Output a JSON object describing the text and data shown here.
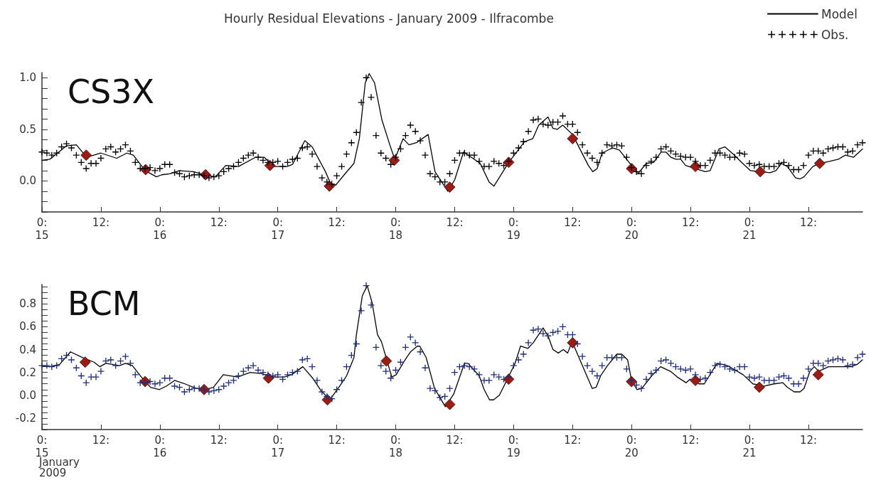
{
  "chart_data": [
    {
      "type": "line",
      "title": "Hourly Residual Elevations - January 2009 - Ilfracombe",
      "annotations": [
        "CS3X"
      ],
      "legend": "top right",
      "grid": false,
      "xlim": [
        "2009-01-15T00:00",
        "2009-01-21T23:00"
      ],
      "xticks": [
        {
          "value": "2009-01-15T00:00",
          "label": "0:\n15"
        },
        {
          "value": "2009-01-15T12:00",
          "label": "12:"
        },
        {
          "value": "2009-01-16T00:00",
          "label": "0:\n16"
        },
        {
          "value": "2009-01-16T12:00",
          "label": "12:"
        },
        {
          "value": "2009-01-17T00:00",
          "label": "0:\n17"
        },
        {
          "value": "2009-01-17T12:00",
          "label": "12:"
        },
        {
          "value": "2009-01-18T00:00",
          "label": "0:\n18"
        },
        {
          "value": "2009-01-18T12:00",
          "label": "12:"
        },
        {
          "value": "2009-01-19T00:00",
          "label": "0:\n19"
        },
        {
          "value": "2009-01-19T12:00",
          "label": "12:"
        },
        {
          "value": "2009-01-20T00:00",
          "label": "0:\n20"
        },
        {
          "value": "2009-01-20T12:00",
          "label": "12:"
        },
        {
          "value": "2009-01-21T00:00",
          "label": "0:\n21"
        },
        {
          "value": "2009-01-21T12:00",
          "label": "12:"
        }
      ],
      "ylim": [
        -0.3,
        1.05
      ],
      "yticks": [
        {
          "value": -0.3,
          "label": null
        },
        {
          "value": -0.2,
          "label": null
        },
        {
          "value": -0.1,
          "label": null
        },
        {
          "value": 0,
          "label": "0.0"
        },
        {
          "value": 0.1,
          "label": null
        },
        {
          "value": 0.2,
          "label": null
        },
        {
          "value": 0.3,
          "label": null
        },
        {
          "value": 0.4,
          "label": null
        },
        {
          "value": 0.5,
          "label": "0.5"
        },
        {
          "value": 0.6,
          "label": null
        },
        {
          "value": 0.7,
          "label": null
        },
        {
          "value": 0.8,
          "label": null
        },
        {
          "value": 0.9,
          "label": null
        },
        {
          "value": 1.0,
          "label": "1.0"
        }
      ],
      "x": [
        "2009-01-15T00:00",
        "2009-01-15T01:00",
        "2009-01-15T02:00",
        "2009-01-15T03:00",
        "2009-01-15T04:00",
        "2009-01-15T05:00",
        "2009-01-15T06:00",
        "2009-01-15T07:00",
        "2009-01-15T08:00",
        "2009-01-15T09:00",
        "2009-01-15T10:00",
        "2009-01-15T11:00",
        "2009-01-15T12:00",
        "2009-01-15T13:00",
        "2009-01-15T14:00",
        "2009-01-15T15:00",
        "2009-01-15T16:00",
        "2009-01-15T17:00",
        "2009-01-15T18:00",
        "2009-01-15T19:00",
        "2009-01-15T20:00",
        "2009-01-15T21:00",
        "2009-01-15T22:00",
        "2009-01-15T23:00",
        "2009-01-16T00:00",
        "2009-01-16T01:00",
        "2009-01-16T02:00",
        "2009-01-16T03:00",
        "2009-01-16T04:00",
        "2009-01-16T05:00",
        "2009-01-16T06:00",
        "2009-01-16T07:00",
        "2009-01-16T08:00",
        "2009-01-16T09:00",
        "2009-01-16T10:00",
        "2009-01-16T11:00",
        "2009-01-16T12:00",
        "2009-01-16T13:00",
        "2009-01-16T14:00",
        "2009-01-16T15:00",
        "2009-01-16T16:00",
        "2009-01-16T17:00",
        "2009-01-16T18:00",
        "2009-01-16T19:00",
        "2009-01-16T20:00",
        "2009-01-16T21:00",
        "2009-01-16T22:00",
        "2009-01-16T23:00",
        "2009-01-17T00:00",
        "2009-01-17T01:00",
        "2009-01-17T02:00",
        "2009-01-17T03:00",
        "2009-01-17T04:00",
        "2009-01-17T05:00",
        "2009-01-17T06:00",
        "2009-01-17T07:00",
        "2009-01-17T08:00",
        "2009-01-17T09:00",
        "2009-01-17T10:00",
        "2009-01-17T11:00",
        "2009-01-17T12:00",
        "2009-01-17T13:00",
        "2009-01-17T14:00",
        "2009-01-17T15:00",
        "2009-01-17T16:00",
        "2009-01-17T17:00",
        "2009-01-17T18:00",
        "2009-01-17T19:00",
        "2009-01-17T20:00",
        "2009-01-17T21:00",
        "2009-01-17T22:00",
        "2009-01-17T23:00",
        "2009-01-18T00:00",
        "2009-01-18T01:00",
        "2009-01-18T02:00",
        "2009-01-18T03:00",
        "2009-01-18T04:00",
        "2009-01-18T05:00",
        "2009-01-18T06:00",
        "2009-01-18T07:00",
        "2009-01-18T08:00",
        "2009-01-18T09:00",
        "2009-01-18T10:00",
        "2009-01-18T11:00",
        "2009-01-18T12:00",
        "2009-01-18T13:00",
        "2009-01-18T14:00",
        "2009-01-18T15:00",
        "2009-01-18T16:00",
        "2009-01-18T17:00",
        "2009-01-18T18:00",
        "2009-01-18T19:00",
        "2009-01-18T20:00",
        "2009-01-18T21:00",
        "2009-01-18T22:00",
        "2009-01-18T23:00",
        "2009-01-19T00:00",
        "2009-01-19T01:00",
        "2009-01-19T02:00",
        "2009-01-19T03:00",
        "2009-01-19T04:00",
        "2009-01-19T05:00",
        "2009-01-19T06:00",
        "2009-01-19T07:00",
        "2009-01-19T08:00",
        "2009-01-19T09:00",
        "2009-01-19T10:00",
        "2009-01-19T11:00",
        "2009-01-19T12:00",
        "2009-01-19T13:00",
        "2009-01-19T14:00",
        "2009-01-19T15:00",
        "2009-01-19T16:00",
        "2009-01-19T17:00",
        "2009-01-19T18:00",
        "2009-01-19T19:00",
        "2009-01-19T20:00",
        "2009-01-19T21:00",
        "2009-01-19T22:00",
        "2009-01-19T23:00",
        "2009-01-20T00:00",
        "2009-01-20T01:00",
        "2009-01-20T02:00",
        "2009-01-20T03:00",
        "2009-01-20T04:00",
        "2009-01-20T05:00",
        "2009-01-20T06:00",
        "2009-01-20T07:00",
        "2009-01-20T08:00",
        "2009-01-20T09:00",
        "2009-01-20T10:00",
        "2009-01-20T11:00",
        "2009-01-20T12:00",
        "2009-01-20T13:00",
        "2009-01-20T14:00",
        "2009-01-20T15:00",
        "2009-01-20T16:00",
        "2009-01-20T17:00",
        "2009-01-20T18:00",
        "2009-01-20T19:00",
        "2009-01-20T20:00",
        "2009-01-20T21:00",
        "2009-01-20T22:00",
        "2009-01-20T23:00",
        "2009-01-21T00:00",
        "2009-01-21T01:00",
        "2009-01-21T02:00",
        "2009-01-21T03:00",
        "2009-01-21T04:00",
        "2009-01-21T05:00",
        "2009-01-21T06:00",
        "2009-01-21T07:00",
        "2009-01-21T08:00",
        "2009-01-21T09:00",
        "2009-01-21T10:00",
        "2009-01-21T11:00",
        "2009-01-21T12:00",
        "2009-01-21T13:00",
        "2009-01-21T14:00",
        "2009-01-21T15:00",
        "2009-01-21T16:00",
        "2009-01-21T17:00",
        "2009-01-21T18:00",
        "2009-01-21T19:00",
        "2009-01-21T20:00",
        "2009-01-21T21:00",
        "2009-01-21T22:00",
        "2009-01-21T23:00"
      ],
      "series": [
        {
          "name": "Model",
          "type": "line",
          "color": "#000000",
          "marker": "none",
          "line_style": "solid",
          "x": [
            "2009-01-15T00:00",
            "2009-01-15T01:36",
            "2009-01-15T05:00",
            "2009-01-15T07:00",
            "2009-01-15T09:06",
            "2009-01-15T12:00",
            "2009-01-15T15:12",
            "2009-01-15T17:18",
            "2009-01-15T18:36",
            "2009-01-15T21:00",
            "2009-01-15T23:18",
            "2009-01-16T00:24",
            "2009-01-16T02:00",
            "2009-01-16T04:00",
            "2009-01-16T06:48",
            "2009-01-16T09:00",
            "2009-01-16T11:18",
            "2009-01-16T13:24",
            "2009-01-16T16:00",
            "2009-01-16T19:30",
            "2009-01-16T21:12",
            "2009-01-16T23:18",
            "2009-01-17T01:54",
            "2009-01-17T03:00",
            "2009-01-17T05:30",
            "2009-01-17T07:00",
            "2009-01-17T09:42",
            "2009-01-17T10:48",
            "2009-01-17T11:48",
            "2009-01-17T13:42",
            "2009-01-17T15:30",
            "2009-01-17T16:36",
            "2009-01-17T17:48",
            "2009-01-17T18:36",
            "2009-01-17T19:42",
            "2009-01-17T21:12",
            "2009-01-17T22:48",
            "2009-01-17T23:48",
            "2009-01-18T01:30",
            "2009-01-18T02:42",
            "2009-01-18T04:12",
            "2009-01-18T06:36",
            "2009-01-18T08:00",
            "2009-01-18T10:36",
            "2009-01-18T12:00",
            "2009-01-18T13:48",
            "2009-01-18T17:12",
            "2009-01-18T19:00",
            "2009-01-18T20:00",
            "2009-01-18T23:00",
            "2009-01-19T02:12",
            "2009-01-19T03:54",
            "2009-01-19T05:06",
            "2009-01-19T07:00",
            "2009-01-19T08:00",
            "2009-01-19T08:54",
            "2009-01-19T10:00",
            "2009-01-19T12:00",
            "2009-01-19T15:12",
            "2009-01-19T16:06",
            "2009-01-19T17:00",
            "2009-01-19T18:00",
            "2009-01-19T20:06",
            "2009-01-19T21:30",
            "2009-01-20T00:00",
            "2009-01-20T01:18",
            "2009-01-20T03:00",
            "2009-01-20T04:30",
            "2009-01-20T06:00",
            "2009-01-20T07:00",
            "2009-01-20T08:00",
            "2009-01-20T09:00",
            "2009-01-20T10:00",
            "2009-01-20T11:00",
            "2009-01-20T13:00",
            "2009-01-20T15:00",
            "2009-01-20T16:00",
            "2009-01-20T17:48",
            "2009-01-20T19:00",
            "2009-01-20T20:42",
            "2009-01-20T22:24",
            "2009-01-21T00:12",
            "2009-01-21T02:12",
            "2009-01-21T04:12",
            "2009-01-21T05:24",
            "2009-01-21T06:30",
            "2009-01-21T07:42",
            "2009-01-21T09:24",
            "2009-01-21T10:18",
            "2009-01-21T11:06",
            "2009-01-21T12:54",
            "2009-01-21T14:18",
            "2009-01-21T16:18",
            "2009-01-21T18:06",
            "2009-01-21T19:30",
            "2009-01-21T21:12",
            "2009-01-21T23:00"
          ],
          "values": [
            0.2,
            0.21,
            0.34,
            0.35,
            0.23,
            0.27,
            0.22,
            0.27,
            0.25,
            0.1,
            0.04,
            0.06,
            0.07,
            0.1,
            0.09,
            0.06,
            0.04,
            0.15,
            0.14,
            0.23,
            0.23,
            0.14,
            0.14,
            0.16,
            0.39,
            0.33,
            0.09,
            -0.03,
            -0.04,
            0.07,
            0.17,
            0.41,
            0.95,
            1.04,
            0.95,
            0.59,
            0.35,
            0.21,
            0.41,
            0.35,
            0.37,
            0.45,
            0.09,
            -0.1,
            0.01,
            0.28,
            0.17,
            -0.01,
            -0.05,
            0.18,
            0.38,
            0.41,
            0.54,
            0.62,
            0.51,
            0.5,
            0.54,
            0.45,
            0.15,
            0.09,
            0.12,
            0.27,
            0.32,
            0.3,
            0.15,
            0.07,
            0.17,
            0.18,
            0.28,
            0.28,
            0.23,
            0.21,
            0.21,
            0.15,
            0.12,
            0.09,
            0.1,
            0.31,
            0.33,
            0.26,
            0.18,
            0.1,
            0.09,
            0.08,
            0.1,
            0.17,
            0.14,
            0.03,
            0.02,
            0.04,
            0.14,
            0.17,
            0.19,
            0.21,
            0.25,
            0.23,
            0.31
          ]
        },
        {
          "name": "Obs.",
          "type": "scatter",
          "color": "#000000",
          "marker": "cross",
          "values": [
            0.28,
            0.27,
            0.25,
            0.27,
            0.33,
            0.36,
            0.32,
            0.25,
            0.18,
            0.12,
            0.17,
            0.17,
            0.22,
            0.31,
            0.33,
            0.28,
            0.31,
            0.35,
            0.29,
            0.18,
            0.12,
            0.12,
            0.13,
            0.1,
            0.12,
            0.16,
            0.16,
            0.08,
            0.07,
            0.04,
            0.05,
            0.06,
            0.06,
            0.05,
            0.03,
            0.04,
            0.05,
            0.09,
            0.12,
            0.14,
            0.18,
            0.22,
            0.25,
            0.27,
            0.23,
            0.2,
            0.18,
            0.18,
            0.19,
            0.14,
            0.18,
            0.21,
            0.22,
            0.32,
            0.33,
            0.26,
            0.14,
            0.03,
            -0.01,
            -0.03,
            0.05,
            0.14,
            0.26,
            0.37,
            0.47,
            0.76,
            1.0,
            0.81,
            0.44,
            0.27,
            0.22,
            0.16,
            0.23,
            0.31,
            0.44,
            0.54,
            0.48,
            0.39,
            0.25,
            0.07,
            0.04,
            -0.01,
            -0.01,
            0.07,
            0.2,
            0.27,
            0.27,
            0.25,
            0.25,
            0.19,
            0.14,
            0.14,
            0.19,
            0.17,
            0.15,
            0.19,
            0.27,
            0.32,
            0.38,
            0.48,
            0.59,
            0.6,
            0.55,
            0.54,
            0.57,
            0.57,
            0.63,
            0.55,
            0.55,
            0.47,
            0.35,
            0.27,
            0.22,
            0.18,
            0.27,
            0.35,
            0.34,
            0.35,
            0.34,
            0.23,
            0.13,
            0.09,
            0.07,
            0.15,
            0.19,
            0.23,
            0.31,
            0.33,
            0.29,
            0.26,
            0.24,
            0.23,
            0.23,
            0.19,
            0.15,
            0.15,
            0.2,
            0.27,
            0.27,
            0.25,
            0.23,
            0.23,
            0.27,
            0.26,
            0.17,
            0.15,
            0.16,
            0.14,
            0.14,
            0.14,
            0.17,
            0.18,
            0.15,
            0.11,
            0.11,
            0.15,
            0.25,
            0.29,
            0.29,
            0.27,
            0.31,
            0.32,
            0.33,
            0.33,
            0.28,
            0.29,
            0.35,
            0.37
          ]
        },
        {
          "type": "scatter",
          "color": "#9b1b15",
          "marker": "diamond",
          "x": [
            "2009-01-15T09:00",
            "2009-01-15T21:06",
            "2009-01-16T09:18",
            "2009-01-16T22:24",
            "2009-01-17T10:30",
            "2009-01-17T23:42",
            "2009-01-18T11:00",
            "2009-01-18T23:00",
            "2009-01-19T12:00",
            "2009-01-20T00:00",
            "2009-01-20T13:00",
            "2009-01-21T02:12",
            "2009-01-21T14:18"
          ],
          "values": [
            0.25,
            0.11,
            0.06,
            0.15,
            -0.05,
            0.2,
            -0.06,
            0.18,
            0.41,
            0.12,
            0.14,
            0.09,
            0.17
          ]
        }
      ]
    },
    {
      "type": "line",
      "annotations": [
        "BCM"
      ],
      "xlabel": "January 2009",
      "grid": false,
      "xlim": [
        "2009-01-15T00:00",
        "2009-01-21T23:00"
      ],
      "xticks": [
        {
          "value": "2009-01-15T00:00",
          "label": "0:\n15"
        },
        {
          "value": "2009-01-15T12:00",
          "label": "12:"
        },
        {
          "value": "2009-01-16T00:00",
          "label": "0:\n16"
        },
        {
          "value": "2009-01-16T12:00",
          "label": "12:"
        },
        {
          "value": "2009-01-17T00:00",
          "label": "0:\n17"
        },
        {
          "value": "2009-01-17T12:00",
          "label": "12:"
        },
        {
          "value": "2009-01-18T00:00",
          "label": "0:\n18"
        },
        {
          "value": "2009-01-18T12:00",
          "label": "12:"
        },
        {
          "value": "2009-01-19T00:00",
          "label": "0:\n19"
        },
        {
          "value": "2009-01-19T12:00",
          "label": "12:"
        },
        {
          "value": "2009-01-20T00:00",
          "label": "0:\n20"
        },
        {
          "value": "2009-01-20T12:00",
          "label": "12:"
        },
        {
          "value": "2009-01-21T00:00",
          "label": "0:\n21"
        },
        {
          "value": "2009-01-21T12:00",
          "label": "12:"
        }
      ],
      "ylim": [
        -0.3,
        0.97
      ],
      "yticks": [
        {
          "value": -0.3,
          "label": null
        },
        {
          "value": -0.25,
          "label": null
        },
        {
          "value": -0.2,
          "label": "-0.2"
        },
        {
          "value": -0.15,
          "label": null
        },
        {
          "value": -0.1,
          "label": null
        },
        {
          "value": -0.05,
          "label": null
        },
        {
          "value": 0,
          "label": "0.0"
        },
        {
          "value": 0.05,
          "label": null
        },
        {
          "value": 0.1,
          "label": null
        },
        {
          "value": 0.15,
          "label": null
        },
        {
          "value": 0.2,
          "label": "0.2"
        },
        {
          "value": 0.25,
          "label": null
        },
        {
          "value": 0.3,
          "label": null
        },
        {
          "value": 0.35,
          "label": null
        },
        {
          "value": 0.4,
          "label": "0.4"
        },
        {
          "value": 0.45,
          "label": null
        },
        {
          "value": 0.5,
          "label": null
        },
        {
          "value": 0.55,
          "label": null
        },
        {
          "value": 0.6,
          "label": "0.6"
        },
        {
          "value": 0.65,
          "label": null
        },
        {
          "value": 0.7,
          "label": null
        },
        {
          "value": 0.75,
          "label": null
        },
        {
          "value": 0.8,
          "label": "0.8"
        },
        {
          "value": 0.85,
          "label": null
        },
        {
          "value": 0.9,
          "label": null
        },
        {
          "value": 0.95,
          "label": null
        }
      ],
      "x": [
        "2009-01-15T00:00",
        "2009-01-15T01:00",
        "2009-01-15T02:00",
        "2009-01-15T03:00",
        "2009-01-15T04:00",
        "2009-01-15T05:00",
        "2009-01-15T06:00",
        "2009-01-15T07:00",
        "2009-01-15T08:00",
        "2009-01-15T09:00",
        "2009-01-15T10:00",
        "2009-01-15T11:00",
        "2009-01-15T12:00",
        "2009-01-15T13:00",
        "2009-01-15T14:00",
        "2009-01-15T15:00",
        "2009-01-15T16:00",
        "2009-01-15T17:00",
        "2009-01-15T18:00",
        "2009-01-15T19:00",
        "2009-01-15T20:00",
        "2009-01-15T21:00",
        "2009-01-15T22:00",
        "2009-01-15T23:00",
        "2009-01-16T00:00",
        "2009-01-16T01:00",
        "2009-01-16T02:00",
        "2009-01-16T03:00",
        "2009-01-16T04:00",
        "2009-01-16T05:00",
        "2009-01-16T06:00",
        "2009-01-16T07:00",
        "2009-01-16T08:00",
        "2009-01-16T09:00",
        "2009-01-16T10:00",
        "2009-01-16T11:00",
        "2009-01-16T12:00",
        "2009-01-16T13:00",
        "2009-01-16T14:00",
        "2009-01-16T15:00",
        "2009-01-16T16:00",
        "2009-01-16T17:00",
        "2009-01-16T18:00",
        "2009-01-16T19:00",
        "2009-01-16T20:00",
        "2009-01-16T21:00",
        "2009-01-16T22:00",
        "2009-01-16T23:00",
        "2009-01-17T00:00",
        "2009-01-17T01:00",
        "2009-01-17T02:00",
        "2009-01-17T03:00",
        "2009-01-17T04:00",
        "2009-01-17T05:00",
        "2009-01-17T06:00",
        "2009-01-17T07:00",
        "2009-01-17T08:00",
        "2009-01-17T09:00",
        "2009-01-17T10:00",
        "2009-01-17T11:00",
        "2009-01-17T12:00",
        "2009-01-17T13:00",
        "2009-01-17T14:00",
        "2009-01-17T15:00",
        "2009-01-17T16:00",
        "2009-01-17T17:00",
        "2009-01-17T18:00",
        "2009-01-17T19:00",
        "2009-01-17T20:00",
        "2009-01-17T21:00",
        "2009-01-17T22:00",
        "2009-01-17T23:00",
        "2009-01-18T00:00",
        "2009-01-18T01:00",
        "2009-01-18T02:00",
        "2009-01-18T03:00",
        "2009-01-18T04:00",
        "2009-01-18T05:00",
        "2009-01-18T06:00",
        "2009-01-18T07:00",
        "2009-01-18T08:00",
        "2009-01-18T09:00",
        "2009-01-18T10:00",
        "2009-01-18T11:00",
        "2009-01-18T12:00",
        "2009-01-18T13:00",
        "2009-01-18T14:00",
        "2009-01-18T15:00",
        "2009-01-18T16:00",
        "2009-01-18T17:00",
        "2009-01-18T18:00",
        "2009-01-18T19:00",
        "2009-01-18T20:00",
        "2009-01-18T21:00",
        "2009-01-18T22:00",
        "2009-01-18T23:00",
        "2009-01-19T00:00",
        "2009-01-19T01:00",
        "2009-01-19T02:00",
        "2009-01-19T03:00",
        "2009-01-19T04:00",
        "2009-01-19T05:00",
        "2009-01-19T06:00",
        "2009-01-19T07:00",
        "2009-01-19T08:00",
        "2009-01-19T09:00",
        "2009-01-19T10:00",
        "2009-01-19T11:00",
        "2009-01-19T12:00",
        "2009-01-19T13:00",
        "2009-01-19T14:00",
        "2009-01-19T15:00",
        "2009-01-19T16:00",
        "2009-01-19T17:00",
        "2009-01-19T18:00",
        "2009-01-19T19:00",
        "2009-01-19T20:00",
        "2009-01-19T21:00",
        "2009-01-19T22:00",
        "2009-01-19T23:00",
        "2009-01-20T00:00",
        "2009-01-20T01:00",
        "2009-01-20T02:00",
        "2009-01-20T03:00",
        "2009-01-20T04:00",
        "2009-01-20T05:00",
        "2009-01-20T06:00",
        "2009-01-20T07:00",
        "2009-01-20T08:00",
        "2009-01-20T09:00",
        "2009-01-20T10:00",
        "2009-01-20T11:00",
        "2009-01-20T12:00",
        "2009-01-20T13:00",
        "2009-01-20T14:00",
        "2009-01-20T15:00",
        "2009-01-20T16:00",
        "2009-01-20T17:00",
        "2009-01-20T18:00",
        "2009-01-20T19:00",
        "2009-01-20T20:00",
        "2009-01-20T21:00",
        "2009-01-20T22:00",
        "2009-01-20T23:00",
        "2009-01-21T00:00",
        "2009-01-21T01:00",
        "2009-01-21T02:00",
        "2009-01-21T03:00",
        "2009-01-21T04:00",
        "2009-01-21T05:00",
        "2009-01-21T06:00",
        "2009-01-21T07:00",
        "2009-01-21T08:00",
        "2009-01-21T09:00",
        "2009-01-21T10:00",
        "2009-01-21T11:00",
        "2009-01-21T12:00",
        "2009-01-21T13:00",
        "2009-01-21T14:00",
        "2009-01-21T15:00",
        "2009-01-21T16:00",
        "2009-01-21T17:00",
        "2009-01-21T18:00",
        "2009-01-21T19:00",
        "2009-01-21T20:00",
        "2009-01-21T21:00",
        "2009-01-21T22:00",
        "2009-01-21T23:00"
      ],
      "series": [
        {
          "type": "line",
          "color": "#000000",
          "marker": "none",
          "line_style": "solid",
          "x": [
            "2009-01-15T00:00",
            "2009-01-15T01:36",
            "2009-01-15T03:36",
            "2009-01-15T05:48",
            "2009-01-15T08:18",
            "2009-01-15T10:36",
            "2009-01-15T11:48",
            "2009-01-15T13:00",
            "2009-01-15T15:48",
            "2009-01-15T17:00",
            "2009-01-15T18:24",
            "2009-01-15T20:24",
            "2009-01-15T22:06",
            "2009-01-15T23:54",
            "2009-01-16T01:18",
            "2009-01-16T03:00",
            "2009-01-16T05:06",
            "2009-01-16T07:24",
            "2009-01-16T09:06",
            "2009-01-16T10:54",
            "2009-01-16T12:54",
            "2009-01-16T15:48",
            "2009-01-16T18:24",
            "2009-01-16T20:42",
            "2009-01-16T23:00",
            "2009-01-17T01:18",
            "2009-01-17T02:48",
            "2009-01-17T05:06",
            "2009-01-17T07:06",
            "2009-01-17T08:48",
            "2009-01-17T10:36",
            "2009-01-17T12:36",
            "2009-01-17T14:00",
            "2009-01-17T15:30",
            "2009-01-17T16:00",
            "2009-01-17T17:12",
            "2009-01-17T18:12",
            "2009-01-17T19:12",
            "2009-01-17T20:18",
            "2009-01-17T21:06",
            "2009-01-17T23:12",
            "2009-01-18T00:06",
            "2009-01-18T01:54",
            "2009-01-18T03:00",
            "2009-01-18T04:24",
            "2009-01-18T04:54",
            "2009-01-18T06:12",
            "2009-01-18T07:54",
            "2009-01-18T10:06",
            "2009-01-18T11:48",
            "2009-01-18T14:00",
            "2009-01-18T14:42",
            "2009-01-18T17:00",
            "2009-01-18T18:00",
            "2009-01-18T19:06",
            "2009-01-18T19:54",
            "2009-01-18T21:06",
            "2009-01-18T22:36",
            "2009-01-19T00:18",
            "2009-01-19T01:24",
            "2009-01-19T02:54",
            "2009-01-19T04:00",
            "2009-01-19T06:00",
            "2009-01-19T07:00",
            "2009-01-19T08:00",
            "2009-01-19T09:06",
            "2009-01-19T10:06",
            "2009-01-19T11:00",
            "2009-01-19T11:54",
            "2009-01-19T14:48",
            "2009-01-19T16:00",
            "2009-01-19T16:48",
            "2009-01-19T17:42",
            "2009-01-19T19:06",
            "2009-01-19T21:00",
            "2009-01-19T22:00",
            "2009-01-19T23:12",
            "2009-01-20T00:00",
            "2009-01-20T01:06",
            "2009-01-20T02:06",
            "2009-01-20T04:06",
            "2009-01-20T05:54",
            "2009-01-20T07:54",
            "2009-01-20T09:18",
            "2009-01-20T11:06",
            "2009-01-20T11:54",
            "2009-01-20T13:42",
            "2009-01-20T14:48",
            "2009-01-20T17:24",
            "2009-01-20T19:30",
            "2009-01-20T22:42",
            "2009-01-21T00:42",
            "2009-01-21T03:00",
            "2009-01-21T05:00",
            "2009-01-21T06:48",
            "2009-01-21T07:42",
            "2009-01-21T09:06",
            "2009-01-21T10:18",
            "2009-01-21T11:06",
            "2009-01-21T12:18",
            "2009-01-21T13:12",
            "2009-01-21T14:06",
            "2009-01-21T16:06",
            "2009-01-21T19:00",
            "2009-01-21T20:42",
            "2009-01-21T21:54",
            "2009-01-21T23:00"
          ],
          "values": [
            0.26,
            0.25,
            0.27,
            0.38,
            0.33,
            0.29,
            0.25,
            0.28,
            0.26,
            0.28,
            0.26,
            0.15,
            0.07,
            0.05,
            0.08,
            0.13,
            0.1,
            0.06,
            0.05,
            0.07,
            0.18,
            0.16,
            0.2,
            0.19,
            0.16,
            0.16,
            0.18,
            0.25,
            0.15,
            0.04,
            -0.04,
            0.08,
            0.17,
            0.33,
            0.53,
            0.87,
            0.96,
            0.81,
            0.53,
            0.47,
            0.16,
            0.18,
            0.31,
            0.38,
            0.43,
            0.43,
            0.33,
            0.06,
            -0.1,
            0.01,
            0.28,
            0.28,
            0.17,
            0.05,
            -0.04,
            -0.04,
            0.0,
            0.13,
            0.28,
            0.43,
            0.41,
            0.46,
            0.59,
            0.52,
            0.4,
            0.37,
            0.4,
            0.37,
            0.47,
            0.18,
            0.06,
            0.07,
            0.17,
            0.26,
            0.36,
            0.36,
            0.31,
            0.13,
            0.05,
            0.06,
            0.17,
            0.25,
            0.21,
            0.16,
            0.11,
            0.14,
            0.1,
            0.1,
            0.28,
            0.26,
            0.18,
            0.1,
            0.08,
            0.1,
            0.11,
            0.07,
            0.03,
            0.03,
            0.06,
            0.21,
            0.25,
            0.21,
            0.25,
            0.25,
            0.25,
            0.27,
            0.31
          ]
        },
        {
          "type": "scatter",
          "color": "#1f2d7a",
          "marker": "cross",
          "values": [
            0.26,
            0.26,
            0.25,
            0.26,
            0.32,
            0.35,
            0.31,
            0.24,
            0.17,
            0.11,
            0.16,
            0.16,
            0.21,
            0.3,
            0.31,
            0.26,
            0.3,
            0.34,
            0.28,
            0.18,
            0.11,
            0.11,
            0.12,
            0.1,
            0.11,
            0.15,
            0.15,
            0.08,
            0.07,
            0.03,
            0.05,
            0.06,
            0.06,
            0.05,
            0.03,
            0.04,
            0.05,
            0.08,
            0.11,
            0.13,
            0.17,
            0.21,
            0.24,
            0.26,
            0.22,
            0.2,
            0.18,
            0.17,
            0.18,
            0.14,
            0.18,
            0.2,
            0.21,
            0.31,
            0.32,
            0.25,
            0.13,
            0.03,
            -0.01,
            -0.03,
            0.05,
            0.13,
            0.25,
            0.35,
            0.45,
            0.74,
            0.96,
            0.79,
            0.42,
            0.26,
            0.21,
            0.15,
            0.22,
            0.29,
            0.42,
            0.51,
            0.46,
            0.38,
            0.24,
            0.06,
            0.04,
            -0.02,
            -0.01,
            0.06,
            0.2,
            0.25,
            0.26,
            0.25,
            0.23,
            0.18,
            0.13,
            0.13,
            0.18,
            0.16,
            0.14,
            0.16,
            0.26,
            0.31,
            0.36,
            0.46,
            0.57,
            0.58,
            0.54,
            0.52,
            0.55,
            0.56,
            0.6,
            0.53,
            0.53,
            0.45,
            0.34,
            0.26,
            0.21,
            0.17,
            0.26,
            0.33,
            0.33,
            0.33,
            0.33,
            0.23,
            0.13,
            0.09,
            0.06,
            0.14,
            0.19,
            0.22,
            0.3,
            0.31,
            0.28,
            0.25,
            0.23,
            0.22,
            0.23,
            0.18,
            0.14,
            0.15,
            0.2,
            0.26,
            0.27,
            0.25,
            0.23,
            0.22,
            0.25,
            0.25,
            0.16,
            0.15,
            0.16,
            0.13,
            0.13,
            0.13,
            0.16,
            0.17,
            0.15,
            0.1,
            0.1,
            0.15,
            0.23,
            0.28,
            0.28,
            0.26,
            0.3,
            0.31,
            0.32,
            0.31,
            0.26,
            0.27,
            0.33,
            0.36
          ]
        },
        {
          "type": "scatter",
          "color": "#9b1b15",
          "marker": "diamond",
          "x": [
            "2009-01-15T08:48",
            "2009-01-15T21:00",
            "2009-01-16T09:00",
            "2009-01-16T22:06",
            "2009-01-17T10:06",
            "2009-01-17T22:06",
            "2009-01-18T11:00",
            "2009-01-18T23:00",
            "2009-01-19T12:00",
            "2009-01-20T00:00",
            "2009-01-20T13:00",
            "2009-01-21T02:00",
            "2009-01-21T14:00"
          ],
          "values": [
            0.29,
            0.12,
            0.05,
            0.15,
            -0.04,
            0.3,
            -0.08,
            0.14,
            0.46,
            0.12,
            0.13,
            0.07,
            0.18
          ]
        }
      ]
    }
  ]
}
